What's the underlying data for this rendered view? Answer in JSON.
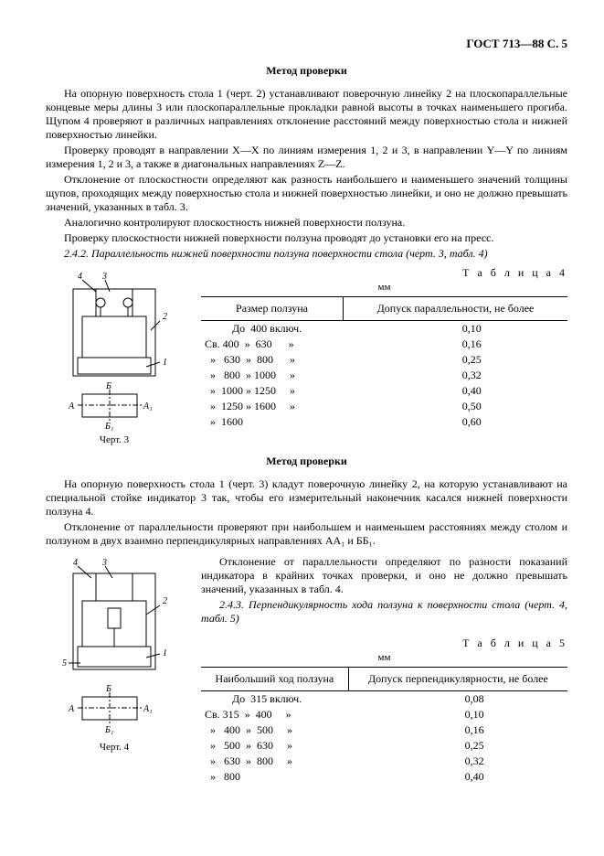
{
  "header": "ГОСТ 713—88 С. 5",
  "title1": "Метод проверки",
  "p1": "На опорную поверхность стола 1 (черт. 2) устанавливают поверочную линейку 2 на плоскопараллельные концевые меры длины 3 или плоскопараллельные прокладки равной высоты в точках наименьшего прогиба. Щупом 4 проверяют в различных направлениях отклонение расстояний между поверхностью стола и нижней поверхностью линейки.",
  "p2": "Проверку проводят в направлении X—X по линиям измерения 1, 2 и 3, в направлении Y—Y по линиям измерения 1, 2 и 3, а также в диагональных направлениях Z—Z.",
  "p3": "Отклонение от плоскостности определяют как разность наибольшего и наименьшего значений толщины щупов, проходящих между поверхностью стола и нижней поверхностью линейки, и оно не должно превышать значений, указанных в табл. 3.",
  "p4": "Аналогично контролируют плоскостность нижней поверхности ползуна.",
  "p5": "Проверку плоскостности нижней поверхности ползуна проводят до установки его на пресс.",
  "p6": "2.4.2.  Параллельность нижней поверхности ползуна поверхности стола (черт. 3, табл. 4)",
  "table4": {
    "label": "Т а б л и ц а   4",
    "unit": "мм",
    "col1": "Размер ползуна",
    "col2": "Допуск параллельности, не более",
    "rows": [
      {
        "size": "          До  400 включ.",
        "val": "0,10"
      },
      {
        "size": "Св. 400  »  630      »",
        "val": "0,16"
      },
      {
        "size": "  »   630  »  800      »",
        "val": "0,25"
      },
      {
        "size": "  »   800  » 1000     »",
        "val": "0,32"
      },
      {
        "size": "  »  1000 » 1250     »",
        "val": "0,40"
      },
      {
        "size": "  »  1250 » 1600     »",
        "val": "0,50"
      },
      {
        "size": "  »  1600",
        "val": "0,60"
      }
    ]
  },
  "fig3_caption": "Черт. 3",
  "title2": "Метод проверки",
  "p7": "На опорную поверхность стола 1 (черт. 3) кладут поверочную линейку 2, на которую устанавливают на специальной стойке индикатор 3 так, чтобы его измерительный наконечник касался нижней поверхности ползуна 4.",
  "p8": "Отклонение от параллельности проверяют при наибольшем и наименьшем расстояниях между столом и ползуном в двух взаимно перпендикулярных направлениях AA₁ и ББ₁.",
  "p9": "Отклонение от параллельности определяют по разности показаний индикатора в крайних точках проверки, и оно не должно превышать значений, указанных в табл. 4.",
  "p10": "2.4.3.  Перпендикулярность хода ползуна к поверхности стола (черт. 4, табл. 5)",
  "table5": {
    "label": "Т а б л и ц а   5",
    "unit": "мм",
    "col1": "Наибольший ход ползуна",
    "col2": "Допуск перпендикулярности, не более",
    "rows": [
      {
        "size": "          До  315 включ.",
        "val": "0,08"
      },
      {
        "size": "Св. 315  »  400     »",
        "val": "0,10"
      },
      {
        "size": "  »   400  »  500     »",
        "val": "0,16"
      },
      {
        "size": "  »   500  »  630     »",
        "val": "0,25"
      },
      {
        "size": "  »   630  »  800     »",
        "val": "0,32"
      },
      {
        "size": "  »   800",
        "val": "0,40"
      }
    ]
  },
  "fig4_caption": "Черт. 4"
}
